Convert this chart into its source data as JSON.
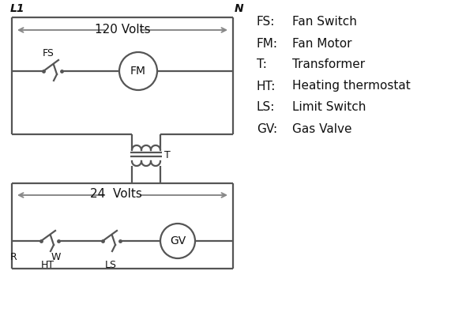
{
  "bg_color": "#ffffff",
  "line_color": "#555555",
  "text_color": "#111111",
  "legend": [
    [
      "FS:",
      "Fan Switch"
    ],
    [
      "FM:",
      "Fan Motor"
    ],
    [
      "T:",
      "Transformer"
    ],
    [
      "HT:",
      "Heating thermostat"
    ],
    [
      "LS:",
      "Limit Switch"
    ],
    [
      "GV:",
      "Gas Valve"
    ]
  ],
  "label_L1": "L1",
  "label_N": "N",
  "label_120V": "120 Volts",
  "label_24V": "24  Volts",
  "label_T": "T",
  "label_FS": "FS",
  "label_FM": "FM",
  "label_GV": "GV",
  "label_R": "R",
  "label_W": "W",
  "label_HT": "HT",
  "label_LS": "LS"
}
